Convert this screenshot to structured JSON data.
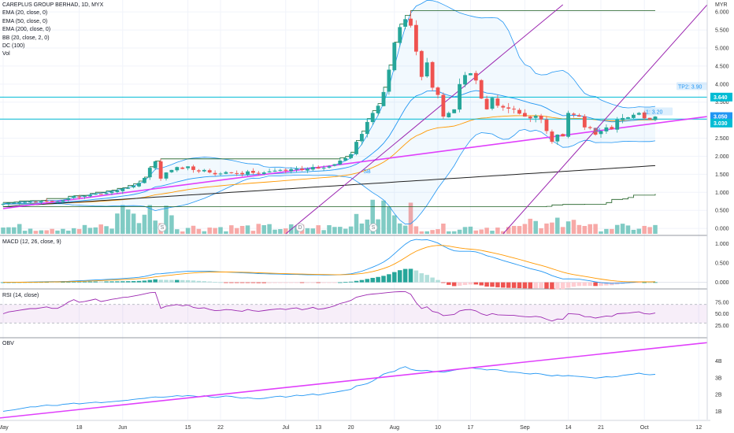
{
  "header": {
    "title": "CAREPLUS GROUP BERHAD, 1D, MYX",
    "currency": "MYR"
  },
  "legend": {
    "items": [
      "EMA (20, close, 0)",
      "EMA (50, close, 0)",
      "EMA (200, close, 0)",
      "BB (20, close, 2, 0)",
      "DC (100)",
      "Vol"
    ]
  },
  "panes": {
    "macd_label": "MACD (12, 26, close, 9)",
    "rsi_label": "RSI (14, close)",
    "obv_label": "OBV"
  },
  "colors": {
    "up": "#26a69a",
    "down": "#ef5350",
    "ema20": "#2196f3",
    "ema50": "#ff9800",
    "ema200": "#212121",
    "bb": "#2196f3",
    "dc": "#1b5e20",
    "trend": "#e040fb",
    "channel": "#9c27b0",
    "hline": "#00bcd4",
    "rsi": "#9c27b0"
  },
  "annotations": {
    "tp2": "TP2: 3.90",
    "tp1": "1: 3.20",
    "price_tag_1": "3.640",
    "price_tag_2": "3.050",
    "price_tag_3": "3.030",
    "marker_s": "S",
    "marker_d": "D",
    "label_sb": "SB"
  },
  "chart_data": [
    {
      "type": "candlestick",
      "title": "CAREPLUS GROUP BERHAD, 1D, MYX",
      "ylim": [
        -0.15,
        6.2
      ],
      "yticks": [
        "0.000",
        "0.500",
        "1.000",
        "1.500",
        "2.000",
        "2.500",
        "3.000",
        "3.500",
        "4.000",
        "4.500",
        "5.000",
        "5.500",
        "6.000"
      ],
      "xticks": [
        "May",
        "18",
        "Jun",
        "15",
        "22",
        "Jul",
        "13",
        "20",
        "Aug",
        "10",
        "17",
        "Sep",
        "14",
        "21",
        "Oct",
        "12"
      ],
      "close": [
        0.68,
        0.7,
        0.71,
        0.72,
        0.73,
        0.74,
        0.74,
        0.75,
        0.76,
        0.75,
        0.75,
        0.78,
        0.84,
        0.9,
        0.88,
        0.9,
        0.93,
        0.97,
        0.95,
        0.98,
        1.02,
        1.05,
        1.1,
        1.12,
        1.18,
        1.26,
        1.4,
        1.68,
        1.86,
        1.38,
        1.55,
        1.62,
        1.7,
        1.65,
        1.72,
        1.62,
        1.58,
        1.62,
        1.55,
        1.5,
        1.52,
        1.56,
        1.55,
        1.52,
        1.5,
        1.58,
        1.54,
        1.52,
        1.55,
        1.58,
        1.6,
        1.62,
        1.6,
        1.64,
        1.66,
        1.62,
        1.65,
        1.7,
        1.66,
        1.68,
        1.72,
        1.78,
        1.88,
        1.95,
        2.06,
        2.4,
        2.62,
        2.95,
        3.2,
        3.4,
        3.78,
        4.4,
        5.15,
        5.58,
        5.8,
        5.62,
        4.9,
        4.2,
        4.6,
        3.9,
        3.7,
        3.1,
        3.2,
        3.3,
        4.0,
        4.25,
        4.3,
        4.1,
        3.6,
        3.3,
        3.62,
        3.4,
        3.35,
        3.32,
        3.3,
        3.18,
        3.1,
        3.05,
        3.12,
        3.02,
        2.7,
        2.4,
        2.6,
        2.55,
        3.2,
        3.15,
        3.1,
        2.8,
        2.78,
        2.6,
        2.7,
        2.8,
        2.75,
        3.02,
        3.06,
        3.08,
        3.15,
        3.2,
        3.05,
        3.02,
        3.1
      ],
      "indicators": [
        "EMA 20",
        "EMA 50",
        "EMA 200",
        "BB (20, 2)",
        "DC (100)"
      ],
      "horizontal_lines": [
        3.64,
        3.03
      ],
      "volume_present": true
    },
    {
      "type": "bar",
      "title": "MACD (12, 26, close, 9)",
      "ylim": [
        -0.15,
        1.15
      ],
      "yticks": [
        "0.000",
        "0.500",
        "1.000"
      ]
    },
    {
      "type": "line",
      "title": "RSI (14, close)",
      "ylim": [
        0,
        100
      ],
      "yticks": [
        "25.00",
        "50.00",
        "75.00"
      ],
      "bands": [
        30,
        70
      ]
    },
    {
      "type": "line",
      "title": "OBV",
      "ylim": [
        0.5,
        5.3
      ],
      "yticks": [
        "1B",
        "2B",
        "3B",
        "4B"
      ]
    }
  ]
}
